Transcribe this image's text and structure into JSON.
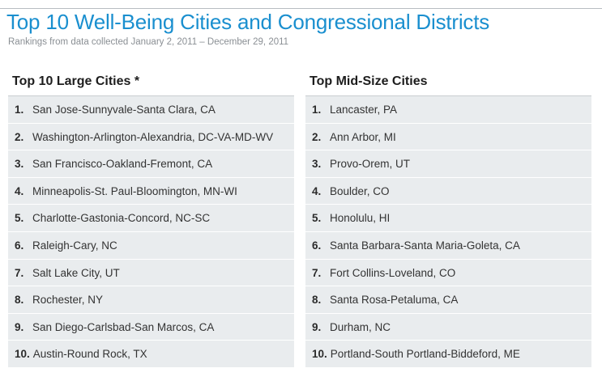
{
  "title": "Top 10 Well-Being Cities and Congressional Districts",
  "subtitle": "Rankings from data collected January 2, 2011 – December 29, 2011",
  "large_cities": {
    "heading": "Top 10 Large Cities *",
    "items": [
      {
        "rank": "1.",
        "name": "San Jose-Sunnyvale-Santa Clara, CA"
      },
      {
        "rank": "2.",
        "name": "Washington-Arlington-Alexandria, DC-VA-MD-WV"
      },
      {
        "rank": "3.",
        "name": "San Francisco-Oakland-Fremont, CA"
      },
      {
        "rank": "4.",
        "name": "Minneapolis-St. Paul-Bloomington, MN-WI"
      },
      {
        "rank": "5.",
        "name": "Charlotte-Gastonia-Concord, NC-SC"
      },
      {
        "rank": "6.",
        "name": "Raleigh-Cary, NC"
      },
      {
        "rank": "7.",
        "name": "Salt Lake City, UT"
      },
      {
        "rank": "8.",
        "name": "Rochester, NY"
      },
      {
        "rank": "9.",
        "name": "San Diego-Carlsbad-San Marcos, CA"
      },
      {
        "rank": "10.",
        "name": "Austin-Round Rock, TX"
      }
    ]
  },
  "midsize_cities": {
    "heading": "Top Mid-Size Cities",
    "items": [
      {
        "rank": "1.",
        "name": "Lancaster, PA"
      },
      {
        "rank": "2.",
        "name": "Ann Arbor, MI"
      },
      {
        "rank": "3.",
        "name": "Provo-Orem, UT"
      },
      {
        "rank": "4.",
        "name": "Boulder, CO"
      },
      {
        "rank": "5.",
        "name": "Honolulu, HI"
      },
      {
        "rank": "6.",
        "name": "Santa Barbara-Santa Maria-Goleta, CA"
      },
      {
        "rank": "7.",
        "name": "Fort Collins-Loveland, CO"
      },
      {
        "rank": "8.",
        "name": "Santa Rosa-Petaluma, CA"
      },
      {
        "rank": "9.",
        "name": "Durham, NC"
      },
      {
        "rank": "10.",
        "name": "Portland-South Portland-Biddeford, ME"
      }
    ]
  },
  "colors": {
    "title": "#1a8fcf",
    "row_background": "#e9ecee"
  }
}
